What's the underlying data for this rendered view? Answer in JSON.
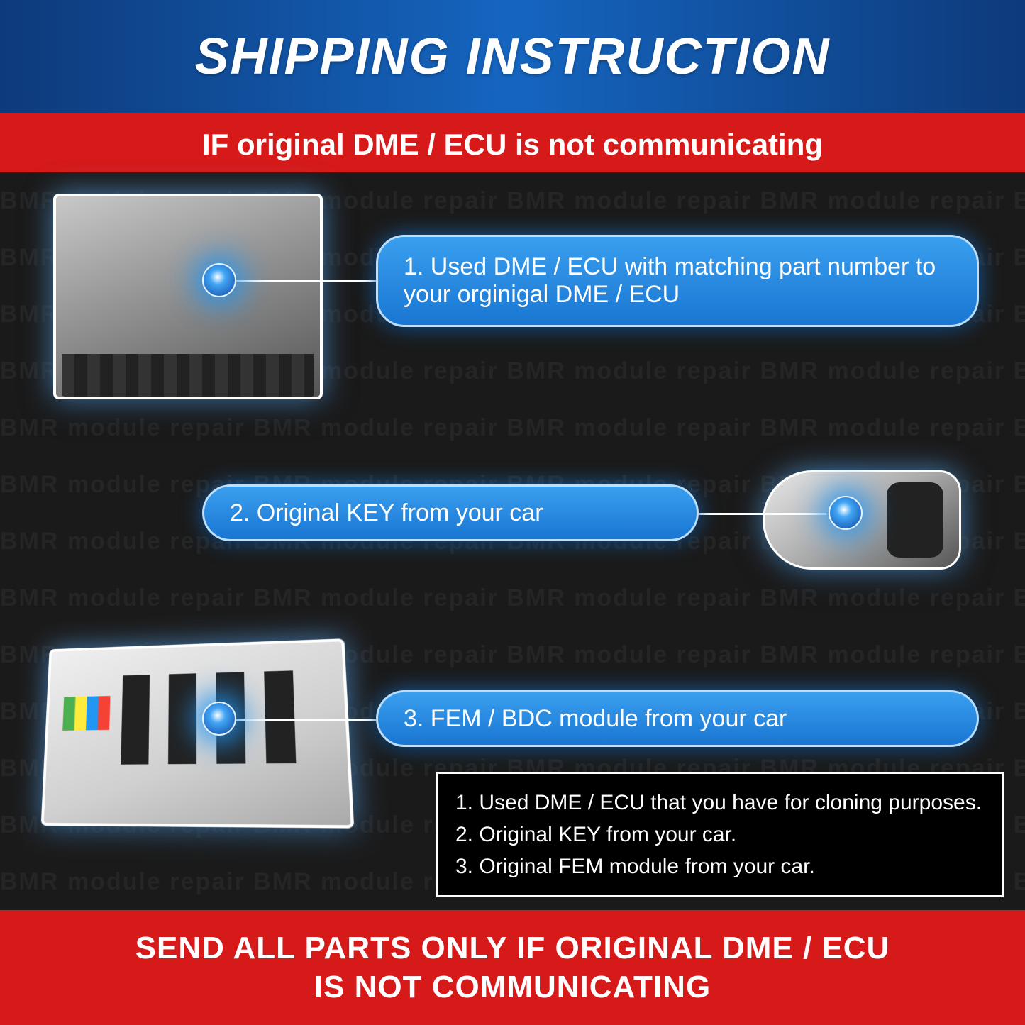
{
  "colors": {
    "header_bg_left": "#0d3a7a",
    "header_bg_mid": "#1565c0",
    "red_band": "#d61a1a",
    "pill_top": "#3a9fef",
    "pill_bottom": "#1976d2",
    "pill_border": "#bbdefb",
    "dark_bg": "#1a1a1a",
    "text_white": "#ffffff"
  },
  "header": {
    "title": "SHIPPING INSTRUCTION"
  },
  "subheader": {
    "text": "IF original DME / ECU is not communicating"
  },
  "callouts": {
    "item1": "1. Used DME / ECU with matching part number to your orginigal DME / ECU",
    "item2": "2. Original KEY from your car",
    "item3": "3. FEM / BDC module from your car"
  },
  "summary": {
    "line1": "1. Used DME / ECU that you have for cloning purposes.",
    "line2": "2. Original KEY from your car.",
    "line3": "3. Original FEM module from your car."
  },
  "footer": {
    "line1": "SEND ALL PARTS ONLY IF ORIGINAL DME / ECU",
    "line2": "IS NOT COMMUNICATING"
  },
  "watermark_text": "BMR module repair  BMR module repair  BMR module repair  BMR module repair  BMR module repair"
}
